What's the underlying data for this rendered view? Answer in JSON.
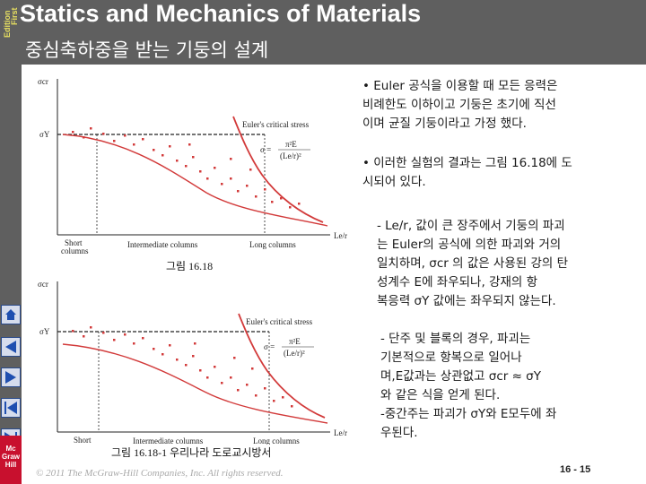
{
  "header": {
    "edition_line1": "First",
    "edition_line2": "Edition",
    "app_title": "Statics and Mechanics of Materials",
    "slide_title": "중심축하중을 받는 기둥의 설계"
  },
  "sidebar": {
    "buttons": [
      "home-icon",
      "previous-slide-icon",
      "next-slide-icon",
      "first-slide-icon",
      "last-slide-icon",
      "exit-icon"
    ],
    "logo_lines": [
      "Mc",
      "Graw",
      "Hill"
    ]
  },
  "figure1": {
    "y_axis_label": "σcr",
    "sigma_y_label": "σY",
    "x_axis_label": "Le/r",
    "euler_label": "Euler's critical stress",
    "formula_num": "π²E",
    "formula_lhs": "σ =",
    "formula_den": "(Le/r)²",
    "region_short_1": "Short",
    "region_short_2": "columns",
    "region_intermediate": "Intermediate columns",
    "region_long": "Long columns",
    "caption": "그림 16.18"
  },
  "figure2": {
    "y_axis_label": "σcr",
    "sigma_y_label": "σY",
    "x_axis_label": "Le/r",
    "euler_label": "Euler's critical stress",
    "formula_num": "π²E",
    "formula_lhs": "σ =",
    "formula_den": "(Le/r)²",
    "region_short_1": "Short",
    "region_short_2": "columns",
    "region_intermediate": "Intermediate columns",
    "region_long": "Long columns",
    "caption": "그림 16.18-1 우리나라 도로교시방서"
  },
  "text": {
    "p1": [
      "• Euler 공식을 이용할 때 모든 응력은",
      "비례한도 이하이고 기둥은 초기에 직선",
      "이며 균질 기둥이라고 가정 했다."
    ],
    "p2": [
      "•  이러한 실험의 결과는 그림 16.18에 도",
      "시되어 있다."
    ],
    "p3": [
      "- Le/r, 값이 큰 장주에서 기둥의 파괴",
      "는 Euler의 공식에 의한 파괴와 거의",
      "일치하며, σcr 의 값은 사용된 강의 탄",
      "성계수 E에 좌우되나, 강재의 항",
      "복응력 σY 값에는 좌우되지 않는다."
    ],
    "p4": [
      "- 단주 및 블록의 경우, 파괴는",
      "기본적으로 항복으로 일어나",
      "며,E값과는 상관없고 σcr ≈ σY",
      "와 같은 식을 얻게 된다.",
      "-중간주는 파괴가 σY와 E모두에 좌",
      "우된다."
    ]
  },
  "footer": {
    "copyright": "© 2011 The McGraw-Hill Companies, Inc. All rights reserved.",
    "page_number": "16 - 15"
  },
  "colors": {
    "header_bg": "#5f5f5f",
    "title_text": "#ffffff",
    "curve_red": "#d23a3a",
    "nav_button": "#d6dcec",
    "nav_arrow": "#1f4fb0"
  }
}
